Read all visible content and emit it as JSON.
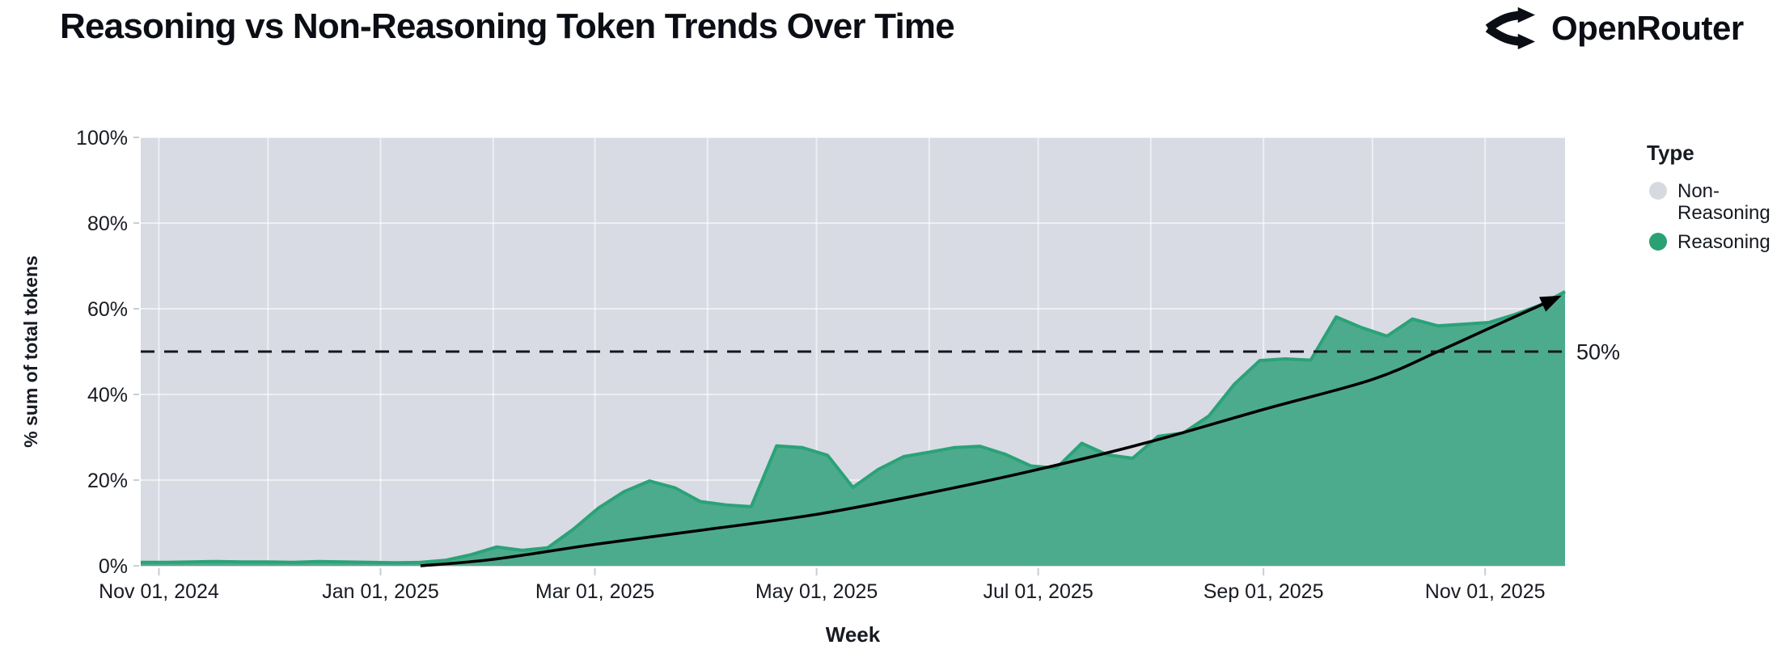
{
  "header": {
    "title": "Reasoning vs Non-Reasoning Token Trends Over Time",
    "brand": "OpenRouter"
  },
  "chart_data": {
    "type": "area",
    "stacked_percent": true,
    "title": "Reasoning vs Non-Reasoning Token Trends Over Time",
    "xlabel": "Week",
    "ylabel": "% sum of total tokens",
    "x_domain": [
      "2024-10-27",
      "2025-11-23"
    ],
    "ylim": [
      0,
      100
    ],
    "grid": {
      "vertical": "monthly",
      "horizontal_values": [
        20,
        40,
        60,
        80,
        100
      ]
    },
    "x_ticks": [
      {
        "date": "2024-11-01",
        "label": "Nov 01, 2024"
      },
      {
        "date": "2025-01-01",
        "label": "Jan 01, 2025"
      },
      {
        "date": "2025-03-01",
        "label": "Mar 01, 2025"
      },
      {
        "date": "2025-05-01",
        "label": "May 01, 2025"
      },
      {
        "date": "2025-07-01",
        "label": "Jul 01, 2025"
      },
      {
        "date": "2025-09-01",
        "label": "Sep 01, 2025"
      },
      {
        "date": "2025-11-01",
        "label": "Nov 01, 2025"
      }
    ],
    "y_ticks": [
      {
        "value": 0,
        "label": "0%"
      },
      {
        "value": 20,
        "label": "20%"
      },
      {
        "value": 40,
        "label": "40%"
      },
      {
        "value": 60,
        "label": "60%"
      },
      {
        "value": 80,
        "label": "80%"
      },
      {
        "value": 100,
        "label": "100%"
      }
    ],
    "legend": {
      "title": "Type",
      "position": "right",
      "entries": [
        {
          "name": "Non-Reasoning",
          "lines": [
            "Non-",
            "Reasoning"
          ],
          "color": "#d6d9e0"
        },
        {
          "name": "Reasoning",
          "lines": [
            "Reasoning"
          ],
          "color": "#2aa173"
        }
      ]
    },
    "series": [
      {
        "name": "Reasoning",
        "fill_color": "#4dab8d",
        "line_color": "#2ba277",
        "dates": [
          "2024-10-27",
          "2024-11-03",
          "2024-11-10",
          "2024-11-17",
          "2024-11-24",
          "2024-12-01",
          "2024-12-08",
          "2024-12-15",
          "2024-12-22",
          "2024-12-29",
          "2025-01-05",
          "2025-01-12",
          "2025-01-19",
          "2025-01-26",
          "2025-02-02",
          "2025-02-09",
          "2025-02-16",
          "2025-02-23",
          "2025-03-02",
          "2025-03-09",
          "2025-03-16",
          "2025-03-23",
          "2025-03-30",
          "2025-04-06",
          "2025-04-13",
          "2025-04-20",
          "2025-04-27",
          "2025-05-04",
          "2025-05-11",
          "2025-05-18",
          "2025-05-25",
          "2025-06-01",
          "2025-06-08",
          "2025-06-15",
          "2025-06-22",
          "2025-06-29",
          "2025-07-06",
          "2025-07-13",
          "2025-07-20",
          "2025-07-27",
          "2025-08-03",
          "2025-08-10",
          "2025-08-17",
          "2025-08-24",
          "2025-08-31",
          "2025-09-07",
          "2025-09-14",
          "2025-09-21",
          "2025-09-28",
          "2025-10-05",
          "2025-10-12",
          "2025-10-19",
          "2025-10-26",
          "2025-11-02",
          "2025-11-09",
          "2025-11-16",
          "2025-11-23"
        ],
        "values": [
          0.8,
          0.8,
          0.9,
          1.0,
          0.9,
          0.9,
          0.8,
          1.0,
          0.9,
          0.8,
          0.7,
          0.8,
          1.3,
          2.6,
          4.4,
          3.6,
          4.2,
          8.5,
          13.5,
          17.3,
          19.8,
          18.2,
          15.0,
          14.2,
          13.8,
          28.0,
          27.6,
          25.8,
          18.3,
          22.5,
          25.5,
          26.5,
          27.6,
          27.9,
          26.0,
          23.3,
          22.8,
          28.6,
          25.9,
          25.1,
          30.2,
          31.0,
          35.0,
          42.4,
          47.9,
          48.3,
          48.0,
          58.1,
          55.6,
          53.6,
          57.6,
          56.0,
          56.4,
          56.8,
          58.6,
          60.8,
          64.0
        ]
      },
      {
        "name": "Non-Reasoning",
        "fill_color": "#d8dbe4",
        "derived": "100 minus Reasoning (stacked to 100%)"
      }
    ],
    "annotations": {
      "fifty_line": {
        "value": 50,
        "label": "50%",
        "style": "dashed",
        "color": "#14171e"
      },
      "trend_arrow": {
        "color": "#000000",
        "points": [
          [
            "2025-01-12",
            0
          ],
          [
            "2025-02-01",
            1.5
          ],
          [
            "2025-03-01",
            5.0
          ],
          [
            "2025-04-01",
            8.5
          ],
          [
            "2025-05-01",
            12.0
          ],
          [
            "2025-06-01",
            17.0
          ],
          [
            "2025-07-01",
            22.5
          ],
          [
            "2025-08-01",
            29.0
          ],
          [
            "2025-09-01",
            36.5
          ],
          [
            "2025-10-01",
            43.5
          ],
          [
            "2025-10-19",
            50.0
          ],
          [
            "2025-11-01",
            55.0
          ],
          [
            "2025-11-18",
            61.5
          ]
        ]
      }
    },
    "colors": {
      "plot_background_nonreasoning": "#d8dbe4",
      "reasoning_fill": "#4dab8d",
      "reasoning_line": "#2ba277",
      "gridline": "rgba(255,255,255,0.55)",
      "axis_text": "#1a1e27",
      "tick_mark": "#c9cdd5"
    }
  }
}
